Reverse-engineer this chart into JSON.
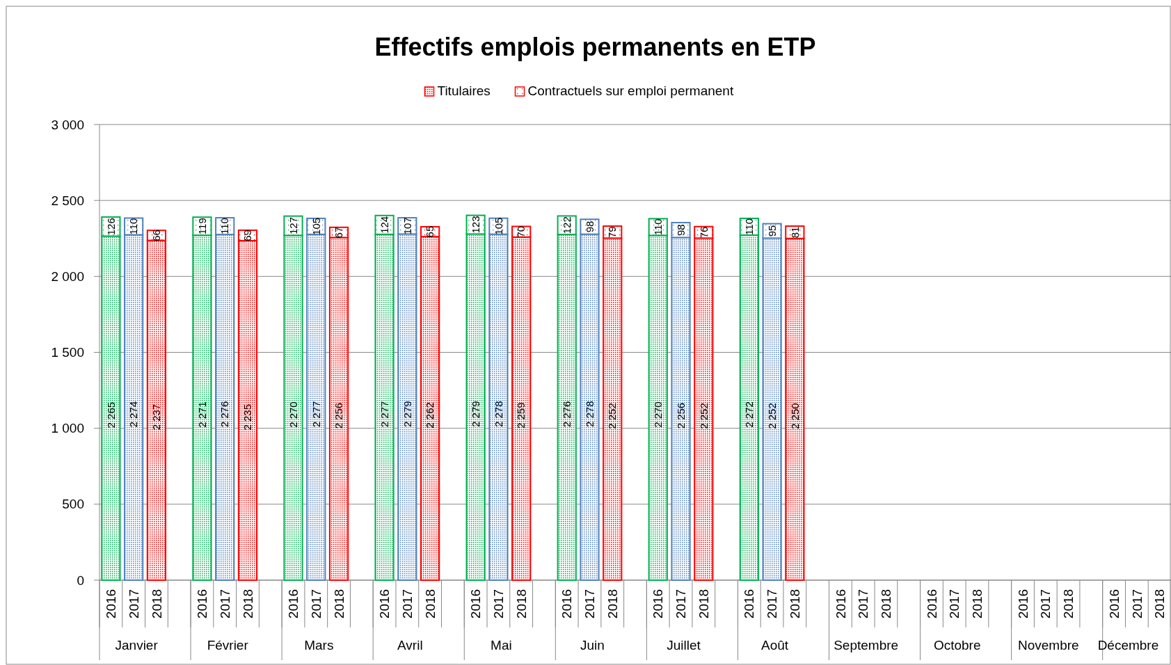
{
  "chart_data": {
    "type": "bar",
    "stacked": true,
    "title": "Effectifs emplois permanents en ETP",
    "categories": [
      "2016",
      "2017",
      "2018",
      "2016",
      "2017",
      "2018",
      "2016",
      "2017",
      "2018",
      "2016",
      "2017",
      "2018",
      "2016",
      "2017",
      "2018",
      "2016",
      "2017",
      "2018",
      "2016",
      "2017",
      "2018",
      "2016",
      "2017",
      "2018",
      "2016",
      "2017",
      "2018",
      "2016",
      "2017",
      "2018",
      "2016",
      "2017",
      "2018",
      "2016",
      "2017",
      "2018"
    ],
    "annotations": [
      "Janvier",
      "Février",
      "Mars",
      "Avril",
      "Mai",
      "Juin",
      "Juillet",
      "Août",
      "Septembre",
      "Octobre",
      "Novembre",
      "Décembre"
    ],
    "series": [
      {
        "name": "Titulaires",
        "color": "#ff0000",
        "colors": [
          "#00b050",
          "#4f81bd",
          "#ff0000",
          "#00b050",
          "#4f81bd",
          "#ff0000",
          "#00b050",
          "#4f81bd",
          "#ff0000",
          "#00b050",
          "#4f81bd",
          "#ff0000",
          "#00b050",
          "#4f81bd",
          "#ff0000",
          "#00b050",
          "#4f81bd",
          "#ff0000",
          "#00b050",
          "#4f81bd",
          "#ff0000",
          "#00b050",
          "#4f81bd",
          "#ff0000",
          "#00b050",
          "#4f81bd",
          "#ff0000",
          "#00b050",
          "#4f81bd",
          "#ff0000",
          "#00b050",
          "#4f81bd",
          "#ff0000",
          "#00b050",
          "#4f81bd",
          "#ff0000"
        ],
        "values": [
          2265,
          2274,
          2237,
          2271,
          2276,
          2235,
          2270,
          2277,
          2256,
          2277,
          2279,
          2262,
          2279,
          2278,
          2259,
          2276,
          2278,
          2252,
          2270,
          2256,
          2252,
          2272,
          2252,
          2250,
          null,
          null,
          null,
          null,
          null,
          null,
          null,
          null,
          null,
          null,
          null,
          null
        ],
        "value_labels": [
          "2 265",
          "2 274",
          "2 237",
          "2 271",
          "2 276",
          "2 235",
          "2 270",
          "2 277",
          "2 256",
          "2 277",
          "2 279",
          "2 262",
          "2 279",
          "2 278",
          "2 259",
          "2 276",
          "2 278",
          "2 252",
          "2 270",
          "2 256",
          "2 252",
          "2 272",
          "2 252",
          "2 250",
          null,
          null,
          null,
          null,
          null,
          null,
          null,
          null,
          null,
          null,
          null,
          null
        ]
      },
      {
        "name": "Contractuels sur emploi permanent",
        "color": "#ff0000",
        "colors": [
          "#00b050",
          "#4f81bd",
          "#ff0000",
          "#00b050",
          "#4f81bd",
          "#ff0000",
          "#00b050",
          "#4f81bd",
          "#ff0000",
          "#00b050",
          "#4f81bd",
          "#ff0000",
          "#00b050",
          "#4f81bd",
          "#ff0000",
          "#00b050",
          "#4f81bd",
          "#ff0000",
          "#00b050",
          "#4f81bd",
          "#ff0000",
          "#00b050",
          "#4f81bd",
          "#ff0000",
          "#00b050",
          "#4f81bd",
          "#ff0000",
          "#00b050",
          "#4f81bd",
          "#ff0000",
          "#00b050",
          "#4f81bd",
          "#ff0000",
          "#00b050",
          "#4f81bd",
          "#ff0000"
        ],
        "values": [
          126,
          110,
          66,
          119,
          110,
          69,
          127,
          105,
          67,
          124,
          107,
          65,
          123,
          105,
          70,
          122,
          98,
          79,
          110,
          98,
          76,
          110,
          95,
          81,
          null,
          null,
          null,
          null,
          null,
          null,
          null,
          null,
          null,
          null,
          null,
          null
        ],
        "value_labels": [
          "126",
          "110",
          "66",
          "119",
          "110",
          "69",
          "127",
          "105",
          "67",
          "124",
          "107",
          "65",
          "123",
          "105",
          "70",
          "122",
          "98",
          "79",
          "110",
          "98",
          "76",
          "110",
          "95",
          "81",
          null,
          null,
          null,
          null,
          null,
          null,
          null,
          null,
          null,
          null,
          null,
          null
        ]
      }
    ],
    "ylim": [
      0,
      3000
    ],
    "yticks": [
      0,
      {
        "value": 500,
        "label": "500"
      },
      {
        "value": 1000,
        "label": "1 000"
      },
      {
        "value": 1500,
        "label": "1 500"
      },
      {
        "value": 2000,
        "label": "2 000"
      },
      {
        "value": 2500,
        "label": "2 500"
      },
      {
        "value": 3000,
        "label": "3 000"
      }
    ],
    "grid": "y",
    "legend": "top"
  }
}
